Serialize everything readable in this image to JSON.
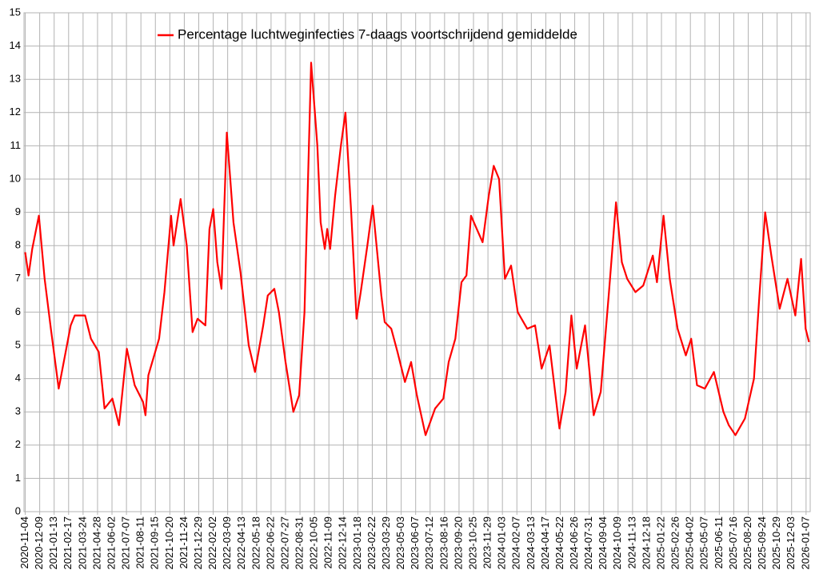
{
  "chart_data": {
    "type": "line",
    "series": [
      {
        "name": "Percentage luchtweginfecties 7-daags voortschrijdend gemiddelde",
        "color": "#ff0000",
        "x": [
          "2020-11-04",
          "2020-11-12",
          "2020-11-21",
          "2020-12-07",
          "2020-12-21",
          "2021-01-05",
          "2021-01-24",
          "2021-02-22",
          "2021-03-04",
          "2021-03-29",
          "2021-04-12",
          "2021-05-01",
          "2021-05-15",
          "2021-06-03",
          "2021-06-19",
          "2021-07-08",
          "2021-07-27",
          "2021-08-16",
          "2021-08-22",
          "2021-08-29",
          "2021-09-24",
          "2021-10-07",
          "2021-10-23",
          "2021-10-29",
          "2021-11-15",
          "2021-11-30",
          "2021-12-14",
          "2021-12-26",
          "2022-01-14",
          "2022-01-24",
          "2022-02-02",
          "2022-02-12",
          "2022-02-22",
          "2022-03-07",
          "2022-03-23",
          "2022-04-09",
          "2022-04-29",
          "2022-05-14",
          "2022-06-03",
          "2022-06-14",
          "2022-06-30",
          "2022-07-11",
          "2022-07-27",
          "2022-08-15",
          "2022-08-29",
          "2022-09-11",
          "2022-09-27",
          "2022-10-12",
          "2022-10-20",
          "2022-10-30",
          "2022-11-05",
          "2022-11-12",
          "2022-11-24",
          "2022-12-08",
          "2022-12-19",
          "2023-01-02",
          "2023-01-15",
          "2023-01-25",
          "2023-02-10",
          "2023-02-23",
          "2023-03-16",
          "2023-03-24",
          "2023-04-09",
          "2023-04-24",
          "2023-05-12",
          "2023-05-27",
          "2023-06-10",
          "2023-07-01",
          "2023-07-24",
          "2023-08-13",
          "2023-08-26",
          "2023-09-11",
          "2023-09-26",
          "2023-10-08",
          "2023-10-19",
          "2023-11-02",
          "2023-11-16",
          "2023-12-01",
          "2023-12-13",
          "2023-12-26",
          "2024-01-09",
          "2024-01-24",
          "2024-02-09",
          "2024-03-03",
          "2024-03-22",
          "2024-04-07",
          "2024-04-26",
          "2024-05-20",
          "2024-06-04",
          "2024-06-18",
          "2024-07-01",
          "2024-07-21",
          "2024-08-11",
          "2024-08-28",
          "2024-09-17",
          "2024-10-04",
          "2024-10-18",
          "2024-10-31",
          "2024-11-20",
          "2024-12-09",
          "2025-01-01",
          "2025-01-11",
          "2025-01-27",
          "2025-02-11",
          "2025-03-02",
          "2025-03-22",
          "2025-04-04",
          "2025-04-18",
          "2025-05-07",
          "2025-05-29",
          "2025-06-21",
          "2025-07-04",
          "2025-07-20",
          "2025-08-12",
          "2025-09-03",
          "2025-09-16",
          "2025-09-30",
          "2025-10-15",
          "2025-11-04",
          "2025-11-23",
          "2025-12-12",
          "2025-12-26",
          "2026-01-06",
          "2026-01-14"
        ],
        "values": [
          7.8,
          7.1,
          7.9,
          8.9,
          7.0,
          5.5,
          3.7,
          5.6,
          5.9,
          5.9,
          5.2,
          4.8,
          3.1,
          3.4,
          2.6,
          4.9,
          3.8,
          3.3,
          2.9,
          4.1,
          5.2,
          6.6,
          8.9,
          8.0,
          9.4,
          8.0,
          5.4,
          5.8,
          5.6,
          8.5,
          9.1,
          7.5,
          6.7,
          11.4,
          8.7,
          7.2,
          5.0,
          4.2,
          5.6,
          6.5,
          6.7,
          6.0,
          4.5,
          3.0,
          3.5,
          6.0,
          13.5,
          11.0,
          8.7,
          7.9,
          8.5,
          7.9,
          9.5,
          11.0,
          12.0,
          9.0,
          5.8,
          6.6,
          8.0,
          9.2,
          6.5,
          5.7,
          5.5,
          4.8,
          3.9,
          4.5,
          3.5,
          2.3,
          3.1,
          3.4,
          4.5,
          5.2,
          6.9,
          7.1,
          8.9,
          8.5,
          8.1,
          9.5,
          10.4,
          10.0,
          7.0,
          7.4,
          6.0,
          5.5,
          5.6,
          4.3,
          5.0,
          2.5,
          3.6,
          5.9,
          4.3,
          5.6,
          2.9,
          3.6,
          6.6,
          9.3,
          7.5,
          7.0,
          6.6,
          6.8,
          7.7,
          6.9,
          8.9,
          7.0,
          5.5,
          4.7,
          5.2,
          3.8,
          3.7,
          4.2,
          3.0,
          2.6,
          2.3,
          2.8,
          4.0,
          6.5,
          9.0,
          7.7,
          6.1,
          7.0,
          5.9,
          7.6,
          5.5,
          5.1
        ]
      }
    ],
    "xlim": [
      "2020-11-01",
      "2026-01-17"
    ],
    "xticks": [
      "2020-11-04",
      "2020-12-09",
      "2021-01-13",
      "2021-02-17",
      "2021-03-24",
      "2021-04-28",
      "2021-06-02",
      "2021-07-07",
      "2021-08-11",
      "2021-09-15",
      "2021-10-20",
      "2021-11-24",
      "2021-12-29",
      "2022-02-02",
      "2022-03-09",
      "2022-04-13",
      "2022-05-18",
      "2022-06-22",
      "2022-07-27",
      "2022-08-31",
      "2022-10-05",
      "2022-11-09",
      "2022-12-14",
      "2023-01-18",
      "2023-02-22",
      "2023-03-29",
      "2023-05-03",
      "2023-06-07",
      "2023-07-12",
      "2023-08-16",
      "2023-09-20",
      "2023-10-25",
      "2023-11-29",
      "2024-01-03",
      "2024-02-07",
      "2024-03-13",
      "2024-04-17",
      "2024-05-22",
      "2024-06-26",
      "2024-07-31",
      "2024-09-04",
      "2024-10-09",
      "2024-11-13",
      "2024-12-18",
      "2025-01-22",
      "2025-02-26",
      "2025-04-02",
      "2025-05-07",
      "2025-06-11",
      "2025-07-16",
      "2025-08-20",
      "2025-09-24",
      "2025-10-29",
      "2025-12-03",
      "2026-01-07"
    ],
    "ylim": [
      0,
      15
    ],
    "yticks": [
      0,
      1,
      2,
      3,
      4,
      5,
      6,
      7,
      8,
      9,
      10,
      11,
      12,
      13,
      14,
      15
    ],
    "grid": true,
    "legend": "top"
  }
}
